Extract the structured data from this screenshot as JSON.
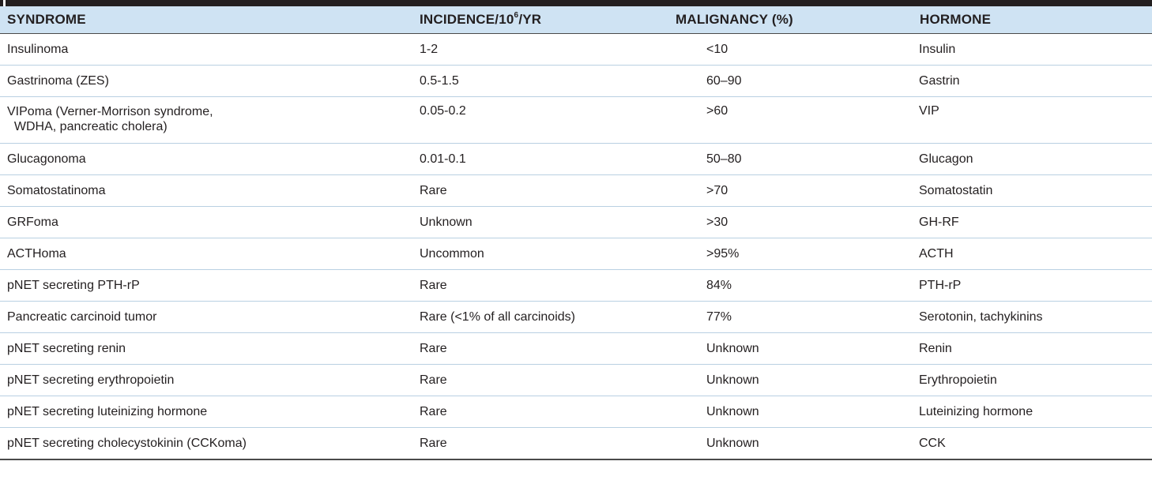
{
  "table": {
    "headers": {
      "syndrome": "SYNDROME",
      "incidence_main": "INCIDENCE/10",
      "incidence_sup": "6",
      "incidence_tail": "/YR",
      "malignancy": "MALIGNANCY (%)",
      "hormone": "HORMONE"
    },
    "rows": [
      {
        "syndrome": "Insulinoma",
        "incidence": "1-2",
        "malignancy": "<10",
        "hormone": "Insulin"
      },
      {
        "syndrome": "Gastrinoma (ZES)",
        "incidence": "0.5-1.5",
        "malignancy": "60–90",
        "hormone": "Gastrin"
      },
      {
        "syndrome": "VIPoma (Verner-Morrison syndrome,\n  WDHA, pancreatic cholera)",
        "incidence": "0.05-0.2",
        "malignancy": ">60",
        "hormone": "VIP"
      },
      {
        "syndrome": "Glucagonoma",
        "incidence": "0.01-0.1",
        "malignancy": "50–80",
        "hormone": "Glucagon"
      },
      {
        "syndrome": "Somatostatinoma",
        "incidence": "Rare",
        "malignancy": ">70",
        "hormone": "Somatostatin"
      },
      {
        "syndrome": "GRFoma",
        "incidence": "Unknown",
        "malignancy": ">30",
        "hormone": "GH-RF"
      },
      {
        "syndrome": "ACTHoma",
        "incidence": "Uncommon",
        "malignancy": ">95%",
        "hormone": "ACTH"
      },
      {
        "syndrome": "pNET secreting PTH-rP",
        "incidence": "Rare",
        "malignancy": "84%",
        "hormone": "PTH-rP"
      },
      {
        "syndrome": "Pancreatic carcinoid tumor",
        "incidence": "Rare (<1% of all carcinoids)",
        "malignancy": "77%",
        "hormone": "Serotonin, tachykinins"
      },
      {
        "syndrome": "pNET secreting renin",
        "incidence": "Rare",
        "malignancy": "Unknown",
        "hormone": "Renin"
      },
      {
        "syndrome": "pNET secreting erythropoietin",
        "incidence": "Rare",
        "malignancy": "Unknown",
        "hormone": "Erythropoietin"
      },
      {
        "syndrome": "pNET secreting luteinizing hormone",
        "incidence": "Rare",
        "malignancy": "Unknown",
        "hormone": "Luteinizing hormone"
      },
      {
        "syndrome": "pNET secreting cholecystokinin (CCKoma)",
        "incidence": "Rare",
        "malignancy": "Unknown",
        "hormone": "CCK"
      }
    ]
  },
  "colors": {
    "header_bg": "#cfe3f3",
    "row_rule": "#b9d0e2",
    "text": "#231f20"
  }
}
